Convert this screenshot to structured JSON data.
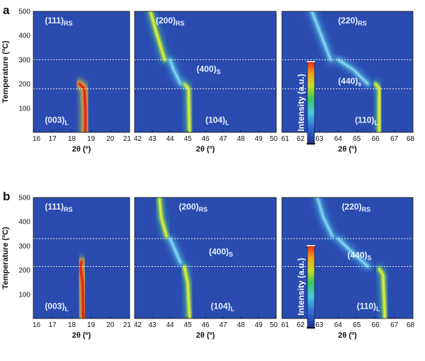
{
  "chart_data": [
    {
      "type": "heatmap",
      "panel_label": "a",
      "ylabel": "Temperature (ºC)",
      "ylim": [
        0,
        500
      ],
      "yticks": [
        100,
        200,
        300,
        400,
        500
      ],
      "xlabel": "2θ (º)",
      "dashed_temperatures": [
        300,
        180
      ],
      "colorbar_label": "Intensity (a.u.)",
      "subplots": [
        {
          "xlim": [
            16,
            21
          ],
          "xticks": [
            "16",
            "17",
            "18",
            "19",
            "20",
            "21"
          ],
          "annotations": [
            {
              "base": "(111)",
              "sub": "RS",
              "x": 16.6,
              "y": 450
            },
            {
              "base": "(003)",
              "sub": "L",
              "x": 16.6,
              "y": 40
            }
          ],
          "traces": [
            {
              "phase": "layered (003)",
              "points": [
                [
                  18.7,
                  0
                ],
                [
                  18.7,
                  100
                ],
                [
                  18.65,
                  180
                ],
                [
                  18.4,
                  200
                ]
              ],
              "intensity": "high"
            },
            {
              "phase": "rocksalt (111)",
              "points": [
                [
                  18.5,
                  210
                ],
                [
                  18.5,
                  500
                ]
              ],
              "intensity": "low"
            }
          ]
        },
        {
          "xlim": [
            42,
            50
          ],
          "xticks": [
            "42",
            "43",
            "44",
            "45",
            "46",
            "47",
            "48",
            "49",
            "50"
          ],
          "annotations": [
            {
              "base": "(200)",
              "sub": "RS",
              "x": 43.2,
              "y": 450
            },
            {
              "base": "(400)",
              "sub": "S",
              "x": 45.5,
              "y": 250
            },
            {
              "base": "(104)",
              "sub": "L",
              "x": 46.0,
              "y": 40
            }
          ],
          "traces": [
            {
              "phase": "layered (104)",
              "points": [
                [
                  45.1,
                  0
                ],
                [
                  45.05,
                  180
                ],
                [
                  44.8,
                  200
                ]
              ],
              "intensity": "medium"
            },
            {
              "phase": "spinel (400)",
              "points": [
                [
                  44.6,
                  200
                ],
                [
                  44.2,
                  260
                ],
                [
                  44.0,
                  300
                ]
              ],
              "intensity": "low"
            },
            {
              "phase": "rocksalt (200)",
              "points": [
                [
                  43.7,
                  300
                ],
                [
                  43.2,
                  420
                ],
                [
                  42.9,
                  500
                ]
              ],
              "intensity": "medium"
            }
          ]
        },
        {
          "xlim": [
            61,
            68
          ],
          "xticks": [
            "61",
            "62",
            "63",
            "64",
            "65",
            "66",
            "67",
            "68"
          ],
          "annotations": [
            {
              "base": "(220)",
              "sub": "RS",
              "x": 64.0,
              "y": 450
            },
            {
              "base": "(440)",
              "sub": "s",
              "x": 64.0,
              "y": 200
            },
            {
              "base": "(110)",
              "sub": "L",
              "x": 64.9,
              "y": 40
            }
          ],
          "traces": [
            {
              "phase": "layered (110)",
              "points": [
                [
                  66.2,
                  0
                ],
                [
                  66.2,
                  180
                ],
                [
                  66.0,
                  200
                ]
              ],
              "intensity": "medium"
            },
            {
              "phase": "spinel (440)",
              "points": [
                [
                  65.6,
                  200
                ],
                [
                  64.8,
                  260
                ],
                [
                  64.0,
                  300
                ]
              ],
              "intensity": "low"
            },
            {
              "phase": "rocksalt (220)",
              "points": [
                [
                  63.6,
                  300
                ],
                [
                  63.0,
                  420
                ],
                [
                  62.6,
                  500
                ]
              ],
              "intensity": "low"
            }
          ]
        }
      ]
    },
    {
      "type": "heatmap",
      "panel_label": "b",
      "ylabel": "Temperature (ºC)",
      "ylim": [
        0,
        500
      ],
      "yticks": [
        100,
        200,
        300,
        400,
        500
      ],
      "xlabel": "2θ (º)",
      "dashed_temperatures": [
        330,
        215
      ],
      "colorbar_label": "Intensity (a.u.)",
      "subplots": [
        {
          "xlim": [
            16,
            21
          ],
          "xticks": [
            "16",
            "17",
            "18",
            "19",
            "20",
            "21"
          ],
          "annotations": [
            {
              "base": "(111)",
              "sub": "RS",
              "x": 16.6,
              "y": 450
            },
            {
              "base": "(003)",
              "sub": "L",
              "x": 16.6,
              "y": 40
            }
          ],
          "traces": [
            {
              "phase": "layered (003)",
              "points": [
                [
                  18.6,
                  0
                ],
                [
                  18.55,
                  150
                ],
                [
                  18.45,
                  215
                ],
                [
                  18.5,
                  235
                ]
              ],
              "intensity": "high"
            },
            {
              "phase": "rocksalt (111)",
              "points": [
                [
                  18.6,
                  260
                ],
                [
                  18.6,
                  500
                ]
              ],
              "intensity": "low"
            }
          ]
        },
        {
          "xlim": [
            42,
            50
          ],
          "xticks": [
            "42",
            "43",
            "44",
            "45",
            "46",
            "47",
            "48",
            "49",
            "50"
          ],
          "annotations": [
            {
              "base": "(200)",
              "sub": "RS",
              "x": 44.5,
              "y": 450
            },
            {
              "base": "(400)",
              "sub": "S",
              "x": 46.2,
              "y": 265
            },
            {
              "base": "(104)",
              "sub": "L",
              "x": 46.3,
              "y": 40
            }
          ],
          "traces": [
            {
              "phase": "layered (104)",
              "points": [
                [
                  45.1,
                  0
                ],
                [
                  45.0,
                  150
                ],
                [
                  44.8,
                  215
                ]
              ],
              "intensity": "medium"
            },
            {
              "phase": "spinel (400)",
              "points": [
                [
                  44.6,
                  230
                ],
                [
                  44.3,
                  280
                ],
                [
                  44.0,
                  330
                ]
              ],
              "intensity": "low"
            },
            {
              "phase": "rocksalt (200)",
              "points": [
                [
                  43.8,
                  340
                ],
                [
                  43.5,
                  420
                ],
                [
                  43.4,
                  500
                ]
              ],
              "intensity": "medium"
            }
          ]
        },
        {
          "xlim": [
            61,
            68
          ],
          "xticks": [
            "61",
            "62",
            "63",
            "64",
            "65",
            "66",
            "67",
            "68"
          ],
          "annotations": [
            {
              "base": "(220)",
              "sub": "RS",
              "x": 64.2,
              "y": 450
            },
            {
              "base": "(440)",
              "sub": "S",
              "x": 64.5,
              "y": 250
            },
            {
              "base": "(110)",
              "sub": "L",
              "x": 65.0,
              "y": 40
            }
          ],
          "traces": [
            {
              "phase": "layered (110)",
              "points": [
                [
                  66.5,
                  0
                ],
                [
                  66.4,
                  180
                ],
                [
                  66.2,
                  205
                ]
              ],
              "intensity": "medium"
            },
            {
              "phase": "spinel (440)",
              "points": [
                [
                  65.6,
                  215
                ],
                [
                  64.8,
                  270
                ],
                [
                  64.0,
                  330
                ]
              ],
              "intensity": "low"
            },
            {
              "phase": "rocksalt (220)",
              "points": [
                [
                  63.7,
                  340
                ],
                [
                  63.2,
                  420
                ],
                [
                  62.9,
                  500
                ]
              ],
              "intensity": "low"
            }
          ]
        }
      ]
    }
  ]
}
